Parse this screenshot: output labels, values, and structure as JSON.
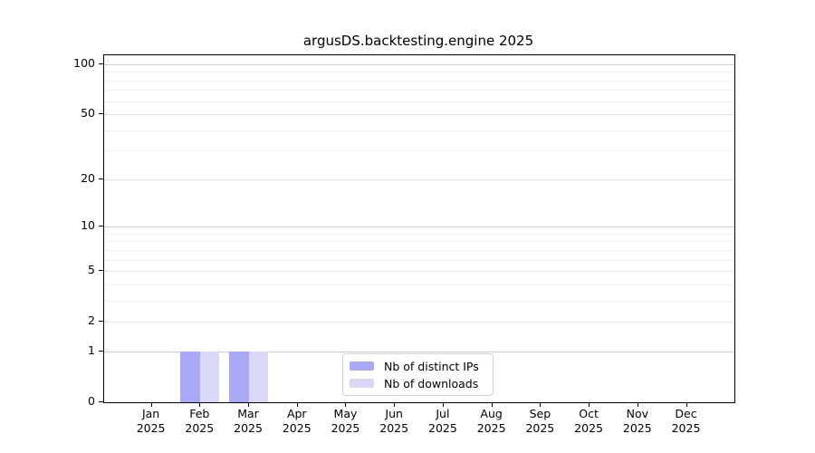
{
  "chart_data": {
    "type": "bar",
    "title": "argusDS.backtesting.engine 2025",
    "x_months": [
      "Jan",
      "Feb",
      "Mar",
      "Apr",
      "May",
      "Jun",
      "Jul",
      "Aug",
      "Sep",
      "Oct",
      "Nov",
      "Dec"
    ],
    "x_year": "2025",
    "categories": [
      "Jan 2025",
      "Feb 2025",
      "Mar 2025",
      "Apr 2025",
      "May 2025",
      "Jun 2025",
      "Jul 2025",
      "Aug 2025",
      "Sep 2025",
      "Oct 2025",
      "Nov 2025",
      "Dec 2025"
    ],
    "series": [
      {
        "name": "Nb of distinct IPs",
        "color": "#a9a9f7",
        "values": [
          0,
          1,
          1,
          0,
          0,
          0,
          0,
          0,
          0,
          0,
          0,
          0
        ]
      },
      {
        "name": "Nb of downloads",
        "color": "#d9d9f7",
        "values": [
          0,
          1,
          1,
          0,
          0,
          0,
          0,
          0,
          0,
          0,
          0,
          0
        ]
      }
    ],
    "yticks": [
      0,
      1,
      2,
      5,
      10,
      20,
      50,
      100
    ],
    "xlabel": "",
    "ylabel": "",
    "y_scale": "log1p",
    "ylim": [
      0,
      113
    ],
    "grid": true,
    "legend": {
      "position": "bottom-center",
      "entries": [
        "Nb of distinct IPs",
        "Nb of downloads"
      ]
    }
  }
}
